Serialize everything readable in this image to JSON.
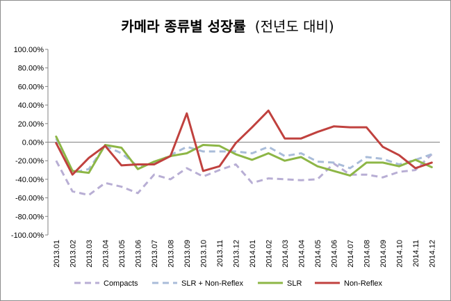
{
  "chart_data": {
    "type": "line",
    "title": "카메라 종류별 성장률",
    "subtitle": "(전년도 대비)",
    "xlabel": "",
    "ylabel": "",
    "ylim": [
      -100,
      100
    ],
    "y_step": 20,
    "y_tick_suffix": "%",
    "grid": false,
    "legend_position": "bottom",
    "x": [
      "2013.01",
      "2013.02",
      "2013.03",
      "2013.04",
      "2013.05",
      "2013.06",
      "2013.07",
      "2013.08",
      "2013.09",
      "2013.10",
      "2013.11",
      "2013.12",
      "2014.01",
      "2014.02",
      "2014.03",
      "2014.04",
      "2014.05",
      "2014.06",
      "2014.07",
      "2014.08",
      "2014.09",
      "2014.10",
      "2014.11",
      "2014.12"
    ],
    "series": [
      {
        "name": "Compacts",
        "color": "#b8aed4",
        "dash": true,
        "values": [
          -20,
          -53,
          -57,
          -44,
          -48,
          -55,
          -35,
          -40,
          -28,
          -37,
          -30,
          -24,
          -44,
          -39,
          -40,
          -41,
          -40,
          -23,
          -35,
          -35,
          -38,
          -32,
          -30,
          -13
        ]
      },
      {
        "name": "SLR + Non-Reflex",
        "color": "#a9bcd9",
        "dash": true,
        "values": [
          4,
          -33,
          -29,
          -4,
          -12,
          -26,
          -23,
          -14,
          -5,
          -10,
          -10,
          -10,
          -12,
          -5,
          -15,
          -12,
          -21,
          -22,
          -28,
          -16,
          -18,
          -24,
          -19,
          -13
        ]
      },
      {
        "name": "SLR",
        "color": "#8db646",
        "dash": false,
        "values": [
          6,
          -31,
          -33,
          -3,
          -6,
          -29,
          -21,
          -15,
          -12,
          -3,
          -4,
          -13,
          -19,
          -12,
          -20,
          -16,
          -26,
          -31,
          -36,
          -22,
          -22,
          -26,
          -19,
          -27
        ]
      },
      {
        "name": "Non-Reflex",
        "color": "#c0413e",
        "dash": false,
        "values": [
          -1,
          -35,
          -17,
          -4,
          -25,
          -24,
          -24,
          -15,
          31,
          -31,
          -26,
          -1,
          16,
          34,
          4,
          4,
          11,
          17,
          16,
          16,
          -5,
          -14,
          -28,
          -22
        ]
      }
    ]
  }
}
